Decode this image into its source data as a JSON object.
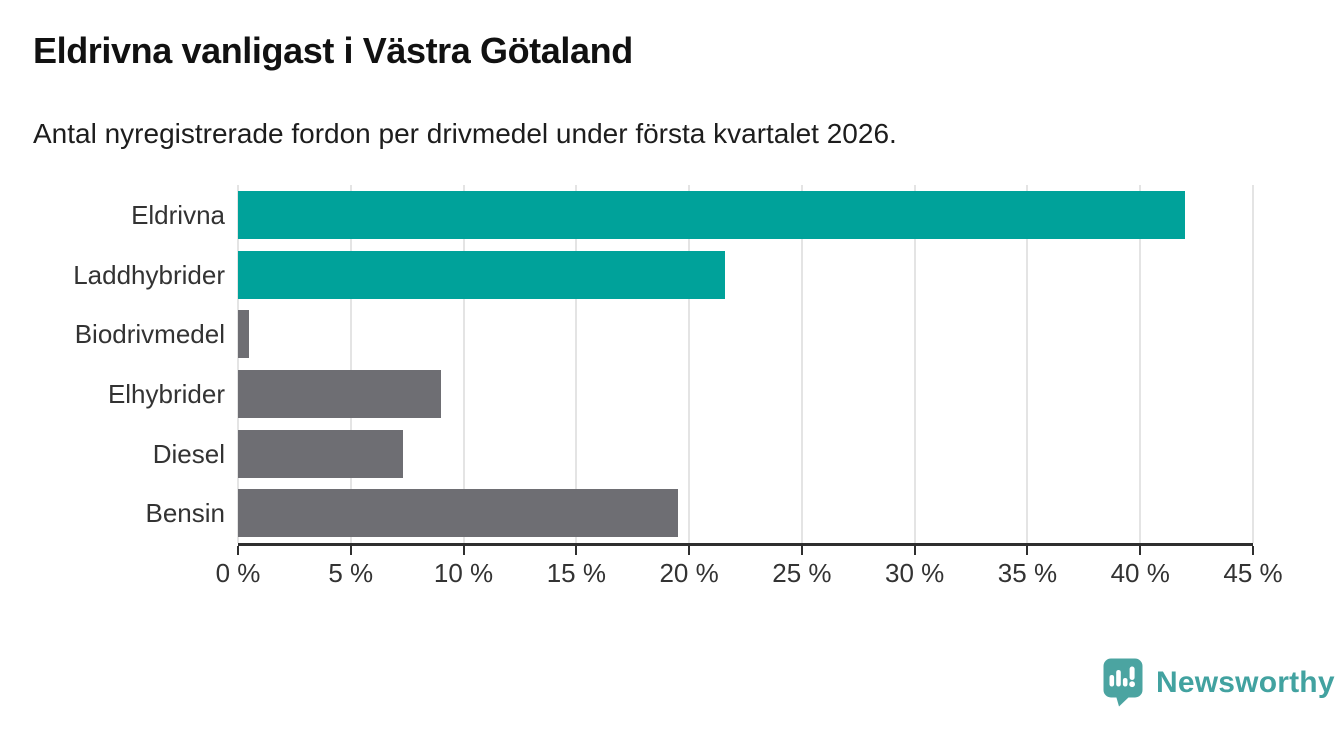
{
  "chart_data": {
    "type": "bar",
    "orientation": "horizontal",
    "title": "Eldrivna vanligast i Västra Götaland",
    "subtitle": "Antal nyregistrerade fordon per drivmedel under första kvartalet 2026.",
    "categories": [
      "Eldrivna",
      "Laddhybrider",
      "Biodrivmedel",
      "Elhybrider",
      "Diesel",
      "Bensin"
    ],
    "values": [
      42,
      21.6,
      0.5,
      9,
      7.3,
      19.5
    ],
    "unit": "%",
    "xlim": [
      0,
      45
    ],
    "x_ticks": [
      0,
      5,
      10,
      15,
      20,
      25,
      30,
      35,
      40,
      45
    ],
    "x_tick_labels": [
      "0 %",
      "5 %",
      "10 %",
      "15 %",
      "20 %",
      "25 %",
      "30 %",
      "35 %",
      "40 %",
      "45 %"
    ],
    "bar_colors": [
      "#00a29a",
      "#00a29a",
      "#6e6e73",
      "#6e6e73",
      "#6e6e73",
      "#6e6e73"
    ],
    "grid": "vertical",
    "legend": "none"
  },
  "colors": {
    "highlight": "#00a29a",
    "muted": "#6e6e73",
    "gridline": "#e4e4e4",
    "axis": "#2f2f2f",
    "text": "#333333"
  },
  "footer": {
    "brand": "Newsworthy",
    "brand_color": "#42a2a0",
    "icon": "newsworthy-pin-bar-chart-icon",
    "icon_color": "#4ba4a1"
  }
}
